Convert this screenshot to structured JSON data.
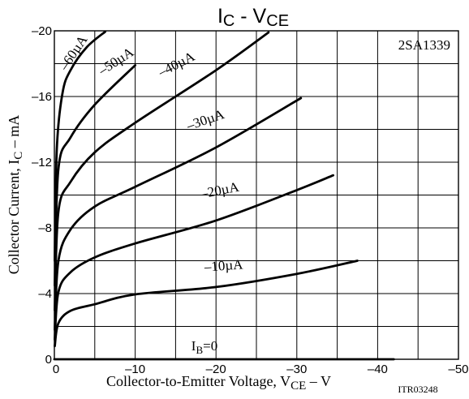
{
  "chart_data": {
    "type": "line",
    "title": {
      "main": "I",
      "sub": "C",
      "rest1": " - V",
      "sub2": "CE"
    },
    "part_number": "2SA1339",
    "code": "ITR03248",
    "xlabel": {
      "main": "Collector-to-Emitter Voltage, V",
      "sub": "CE",
      "rest": " – V"
    },
    "ylabel": {
      "main": "Collector Current, I",
      "sub": "C",
      "rest": " – mA"
    },
    "xlim": [
      0,
      -50
    ],
    "ylim": [
      0,
      -20
    ],
    "x_ticks": [
      {
        "v": 0,
        "label": "0"
      },
      {
        "v": -10,
        "label": "–10"
      },
      {
        "v": -20,
        "label": "–20"
      },
      {
        "v": -30,
        "label": "–30"
      },
      {
        "v": -40,
        "label": "–40"
      },
      {
        "v": -50,
        "label": "–50"
      }
    ],
    "y_ticks": [
      {
        "v": 0,
        "label": "0"
      },
      {
        "v": -4,
        "label": "–4"
      },
      {
        "v": -8,
        "label": "–8"
      },
      {
        "v": -12,
        "label": "–12"
      },
      {
        "v": -16,
        "label": "–16"
      },
      {
        "v": -20,
        "label": "–20"
      }
    ],
    "grid": true,
    "series": [
      {
        "name": "I_B=0",
        "label": {
          "main": "I",
          "sub": "B",
          "rest": "=0"
        },
        "x": [
          0,
          -42
        ],
        "y": [
          0,
          0
        ]
      },
      {
        "name": "–10µA",
        "label": {
          "main": "–10µA"
        },
        "x": [
          -0.05,
          -0.5,
          -2,
          -5,
          -10,
          -20,
          -30,
          -37.5
        ],
        "y": [
          -0.8,
          -2.2,
          -2.95,
          -3.35,
          -3.95,
          -4.4,
          -5.2,
          -6.0
        ]
      },
      {
        "name": "–20µA",
        "label": {
          "main": "–20µA"
        },
        "x": [
          -0.05,
          -0.5,
          -2,
          -5,
          -10,
          -20,
          -30,
          -34.5
        ],
        "y": [
          -1.2,
          -4.1,
          -5.3,
          -6.2,
          -7.05,
          -8.45,
          -10.3,
          -11.2
        ]
      },
      {
        "name": "–30µA",
        "label": {
          "main": "–30µA"
        },
        "x": [
          -0.05,
          -0.5,
          -2,
          -5,
          -10,
          -20,
          -30.5
        ],
        "y": [
          -1.8,
          -6.0,
          -7.9,
          -9.3,
          -10.5,
          -12.9,
          -15.9
        ]
      },
      {
        "name": "–40µA",
        "label": {
          "main": "–40µA"
        },
        "x": [
          -0.05,
          -0.5,
          -2,
          -5,
          -10,
          -20,
          -26.5
        ],
        "y": [
          -3.0,
          -9.0,
          -10.8,
          -12.6,
          -14.4,
          -17.6,
          -19.9
        ]
      },
      {
        "name": "–50µA",
        "label": {
          "main": "–50µA"
        },
        "x": [
          -0.05,
          -0.5,
          -2,
          -5,
          -10
        ],
        "y": [
          -4.5,
          -11.6,
          -13.5,
          -15.5,
          -17.9
        ]
      },
      {
        "name": "–60µA",
        "label": {
          "main": "–60µA"
        },
        "x": [
          -0.05,
          -0.3,
          -1,
          -2,
          -4,
          -6.3
        ],
        "y": [
          -6.0,
          -12.8,
          -16.2,
          -17.6,
          -19.0,
          -19.95
        ]
      }
    ]
  }
}
